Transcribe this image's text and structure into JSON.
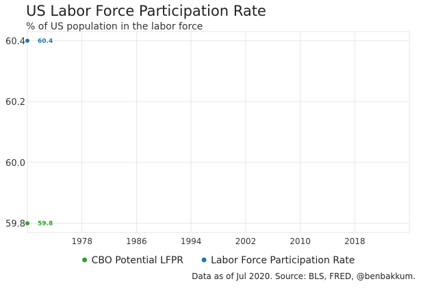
{
  "header": {
    "title": "US Labor Force Participation Rate",
    "subtitle": "% of US population in the labor force"
  },
  "footer": {
    "source": "Data as of Jul 2020. Source: BLS, FRED, @benbakkum."
  },
  "chart_data": {
    "type": "scatter",
    "title": "US Labor Force Participation Rate",
    "subtitle": "% of US population in the labor force",
    "xlabel": "",
    "ylabel": "",
    "xlim": [
      1970,
      2026
    ],
    "ylim": [
      59.77,
      60.43
    ],
    "x_ticks": [
      1978,
      1986,
      1994,
      2002,
      2010,
      2018
    ],
    "y_ticks": [
      59.8,
      60.0,
      60.2,
      60.4
    ],
    "y_tick_labels": [
      "59.8",
      "60.0",
      "60.2",
      "60.4"
    ],
    "grid": true,
    "legend_position": "bottom",
    "series": [
      {
        "name": "CBO Potential LFPR",
        "color": "#2ca02c",
        "points": [
          {
            "x": 1970,
            "y": 59.8,
            "label": "59.8"
          }
        ]
      },
      {
        "name": "Labor Force Participation Rate",
        "color": "#1f77b4",
        "points": [
          {
            "x": 1970,
            "y": 60.4,
            "label": "60.4"
          }
        ]
      }
    ]
  }
}
